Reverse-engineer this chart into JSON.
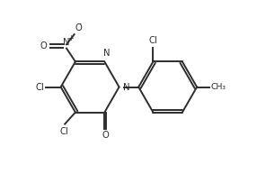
{
  "bg_color": "#ffffff",
  "line_color": "#2d2d2d",
  "line_width": 1.4,
  "font_size": 7.2,
  "figsize": [
    2.96,
    1.93
  ],
  "dpi": 100,
  "xlim": [
    0,
    9.5
  ],
  "ylim": [
    0,
    6.2
  ]
}
